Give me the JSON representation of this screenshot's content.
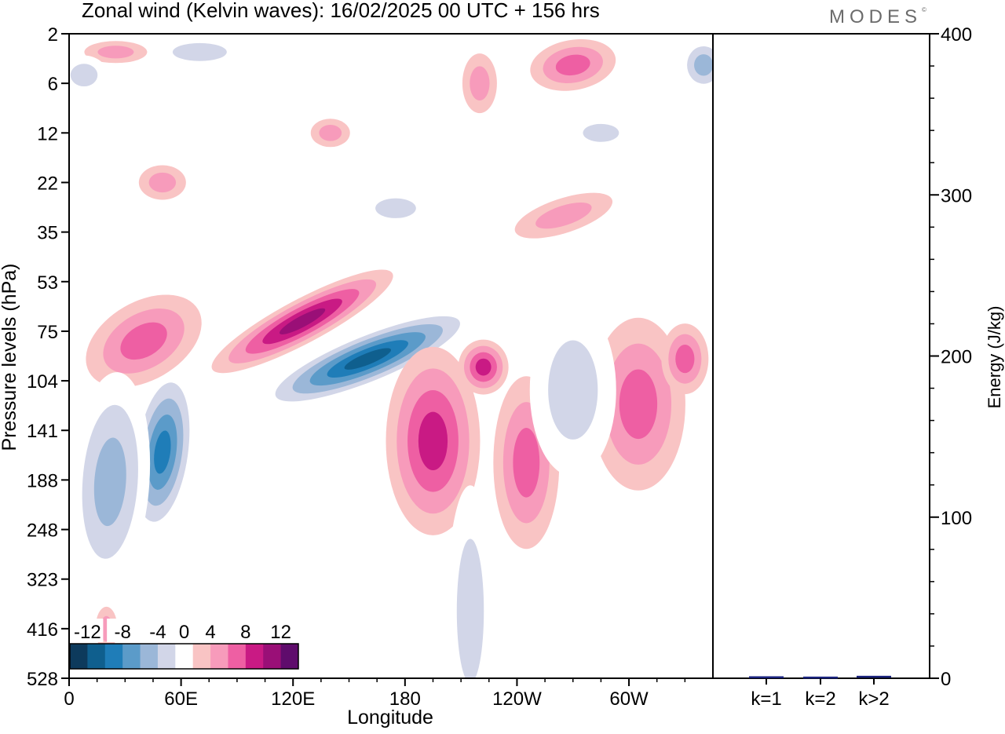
{
  "logo": "MODES",
  "chart_data": [
    {
      "type": "heatmap",
      "title": "Zonal wind (Kelvin waves):  16/02/2025  00 UTC  + 156 hrs",
      "xlabel": "Longitude",
      "ylabel": "Pressure levels (hPa)",
      "x_ticks": [
        "0",
        "60E",
        "120E",
        "180",
        "120W",
        "60W"
      ],
      "x_tick_degrees": [
        0,
        60,
        120,
        180,
        240,
        300
      ],
      "xlim": [
        0,
        345
      ],
      "y_ticks": [
        "2",
        "6",
        "12",
        "22",
        "35",
        "53",
        "75",
        "104",
        "141",
        "188",
        "248",
        "323",
        "416",
        "528"
      ],
      "y_scale": "log-like pressure, 2 at top, 528 at bottom",
      "colorbar": {
        "labels": [
          "-12",
          "-8",
          "-4",
          "0",
          "4",
          "8",
          "12"
        ],
        "levels": [
          -14,
          -12,
          -10,
          -8,
          -6,
          -4,
          -2,
          2,
          4,
          6,
          8,
          10,
          12,
          14
        ],
        "colors": [
          "#0d3a5c",
          "#0f5f8e",
          "#1f7db8",
          "#5b9bc9",
          "#9bb7d8",
          "#d2d6e8",
          "#ffffff",
          "#f9c4c4",
          "#f79bbb",
          "#ee5fa3",
          "#c91a84",
          "#9a0f77",
          "#5f0c6c"
        ],
        "placement": "bottom-left"
      },
      "features": [
        {
          "sign": "positive",
          "peak": 10,
          "lon": [
            95,
            125
          ],
          "hPa": [
            75,
            104
          ]
        },
        {
          "sign": "positive",
          "peak": 8,
          "lon": [
            130,
            160
          ],
          "hPa": [
            53,
            75
          ]
        },
        {
          "sign": "negative",
          "peak": -12,
          "lon": [
            150,
            185
          ],
          "hPa": [
            75,
            104
          ]
        },
        {
          "sign": "negative",
          "peak": -10,
          "lon": [
            40,
            55
          ],
          "hPa": [
            104,
            141
          ]
        },
        {
          "sign": "positive",
          "peak": 8,
          "lon": [
            185,
            205
          ],
          "hPa": [
            104,
            188
          ]
        },
        {
          "sign": "positive",
          "peak": 8,
          "lon": [
            20,
            60
          ],
          "hPa": [
            75,
            104
          ]
        },
        {
          "sign": "negative",
          "peak": -6,
          "lon": [
            8,
            35
          ],
          "hPa": [
            141,
            248
          ]
        },
        {
          "sign": "positive",
          "peak": 6,
          "lon": [
            290,
            320
          ],
          "hPa": [
            75,
            188
          ]
        },
        {
          "sign": "negative",
          "peak": -6,
          "lon": [
            330,
            345
          ],
          "hPa": [
            2,
            6
          ]
        }
      ]
    },
    {
      "type": "bar",
      "ylabel": "Energy (J/kg)",
      "categories": [
        "k=1",
        "k=2",
        "k>2"
      ],
      "values": [
        0.5,
        0.3,
        0.8
      ],
      "ylim": [
        0,
        400
      ],
      "y_ticks": [
        "0",
        "100",
        "200",
        "300",
        "400"
      ],
      "bar_color": "#1a237e"
    }
  ]
}
